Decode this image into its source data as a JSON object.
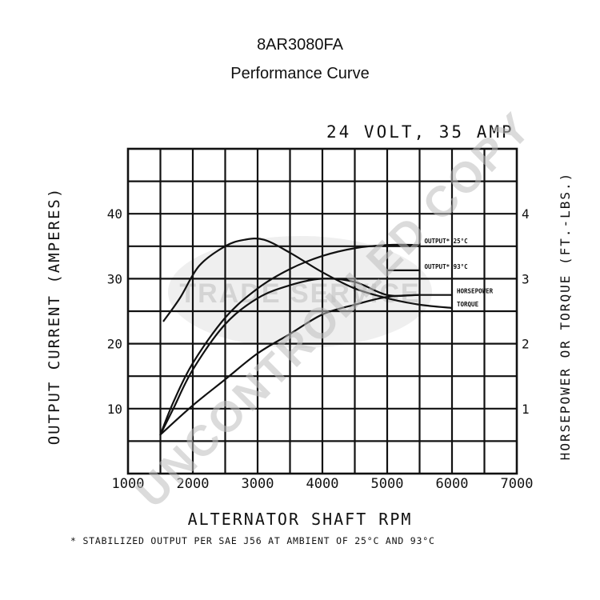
{
  "header": {
    "model": "8AR3080FA",
    "subtitle": "Performance Curve"
  },
  "watermarks": {
    "uncontrolled": "UNCONTROLLED COPY",
    "trade": "TRADE SERVICE"
  },
  "chart_data": {
    "type": "line",
    "title": "24 VOLT, 35 AMP",
    "xlabel": "ALTERNATOR SHAFT RPM",
    "ylabel": "OUTPUT CURRENT (AMPERES)",
    "y2label": "HORSEPOWER OR TORQUE (FT.-LBS.)",
    "footnote": "* STABILIZED OUTPUT PER SAE J56 AT AMBIENT OF 25°C AND 93°C",
    "xlim": [
      1000,
      7000
    ],
    "ylim": [
      0,
      50
    ],
    "y2lim": [
      0,
      5
    ],
    "x_ticks": [
      "1000",
      "2000",
      "3000",
      "4000",
      "5000",
      "6000",
      "7000"
    ],
    "y_ticks": [
      "10",
      "20",
      "30",
      "40"
    ],
    "y2_ticks": [
      "1",
      "2",
      "3",
      "4"
    ],
    "grid": true,
    "series": [
      {
        "name": "OUTPUT* 25°C",
        "axis": "left",
        "points": [
          [
            1500,
            6
          ],
          [
            1700,
            11
          ],
          [
            2000,
            17
          ],
          [
            2500,
            24
          ],
          [
            3000,
            28.5
          ],
          [
            3500,
            31.5
          ],
          [
            4000,
            33.5
          ],
          [
            4500,
            34.7
          ],
          [
            5000,
            35.2
          ],
          [
            5500,
            35.2
          ]
        ]
      },
      {
        "name": "OUTPUT* 93°C",
        "axis": "left",
        "points": [
          [
            5000,
            31.3
          ],
          [
            5500,
            31.3
          ]
        ]
      },
      {
        "name": "HORSEPOWER",
        "axis": "right",
        "points": [
          [
            1500,
            0.6
          ],
          [
            1700,
            1.0
          ],
          [
            2000,
            1.6
          ],
          [
            2500,
            2.3
          ],
          [
            3000,
            2.7
          ],
          [
            3500,
            2.9
          ],
          [
            4000,
            3.0
          ],
          [
            4500,
            2.95
          ],
          [
            5000,
            2.75
          ],
          [
            5500,
            2.75
          ],
          [
            6000,
            2.75
          ]
        ]
      },
      {
        "name": "TORQUE",
        "axis": "right",
        "points": [
          [
            1550,
            2.35
          ],
          [
            1800,
            2.7
          ],
          [
            2100,
            3.2
          ],
          [
            2500,
            3.5
          ],
          [
            2800,
            3.6
          ],
          [
            3100,
            3.6
          ],
          [
            3500,
            3.4
          ],
          [
            4000,
            3.1
          ],
          [
            4500,
            2.85
          ],
          [
            5000,
            2.7
          ],
          [
            5500,
            2.6
          ],
          [
            6000,
            2.55
          ]
        ]
      },
      {
        "name": "",
        "axis": "left",
        "points": [
          [
            1500,
            6
          ],
          [
            2000,
            10.5
          ],
          [
            2500,
            14.5
          ],
          [
            3000,
            18.5
          ],
          [
            3500,
            21.5
          ],
          [
            4000,
            24.5
          ],
          [
            4500,
            26
          ],
          [
            5000,
            27.2
          ],
          [
            5500,
            27.5
          ]
        ]
      }
    ]
  }
}
